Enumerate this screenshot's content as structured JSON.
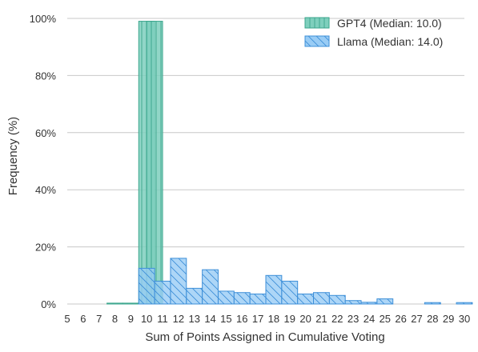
{
  "chart_data": {
    "type": "bar",
    "xlabel": "Sum of Points Assigned in Cumulative Voting",
    "ylabel": "Frequency (%)",
    "x_ticks": [
      "5",
      "6",
      "7",
      "8",
      "9",
      "10",
      "11",
      "12",
      "13",
      "14",
      "15",
      "16",
      "17",
      "18",
      "19",
      "20",
      "21",
      "22",
      "23",
      "24",
      "25",
      "26",
      "27",
      "28",
      "29",
      "30"
    ],
    "y_ticks": [
      "0%",
      "20%",
      "40%",
      "60%",
      "80%",
      "100%"
    ],
    "xlim": [
      5,
      30
    ],
    "ylim": [
      0,
      100
    ],
    "grid": true,
    "legend_position": "top-right",
    "series": [
      {
        "name": "GPT4 (Median: 10.0)",
        "color": "#7ecfbd",
        "edge": "#3aa58c",
        "hatch": "vertical",
        "bins": [
          {
            "x": 7.5,
            "value": 0.3
          },
          {
            "x": 8.5,
            "value": 0.3
          },
          {
            "x": 9.5,
            "value": 99
          },
          {
            "x": 10.0,
            "value": 99
          }
        ]
      },
      {
        "name": "Llama (Median: 14.0)",
        "color": "#99ccf5",
        "edge": "#3d8fd8",
        "hatch": "diagonal",
        "bins": [
          {
            "x": 9.5,
            "value": 12.5
          },
          {
            "x": 10.5,
            "value": 8
          },
          {
            "x": 11.5,
            "value": 16
          },
          {
            "x": 12.5,
            "value": 5.5
          },
          {
            "x": 13.5,
            "value": 12
          },
          {
            "x": 14.5,
            "value": 4.5
          },
          {
            "x": 15.5,
            "value": 4
          },
          {
            "x": 16.5,
            "value": 3.5
          },
          {
            "x": 17.5,
            "value": 10
          },
          {
            "x": 18.5,
            "value": 8
          },
          {
            "x": 19.5,
            "value": 3.5
          },
          {
            "x": 20.5,
            "value": 4
          },
          {
            "x": 21.5,
            "value": 3
          },
          {
            "x": 22.5,
            "value": 1.2
          },
          {
            "x": 23.5,
            "value": 0.6
          },
          {
            "x": 24.5,
            "value": 1.8
          },
          {
            "x": 27.5,
            "value": 0.5
          },
          {
            "x": 29.5,
            "value": 0.5
          }
        ]
      }
    ]
  }
}
